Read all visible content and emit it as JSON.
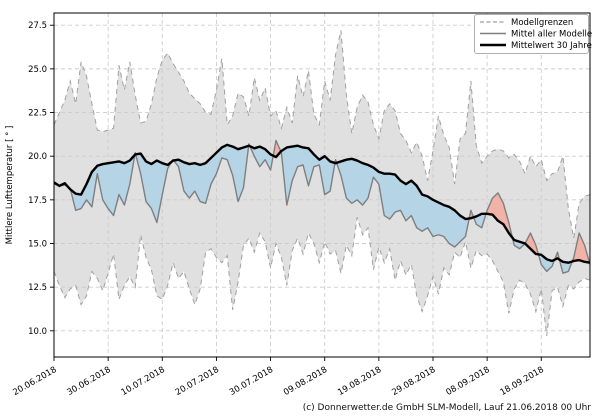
{
  "page": {
    "footer": "(c) Donnerwetter.de GmbH SLM-Modell, Lauf 21.06.2018 00 Uhr"
  },
  "chart_data": {
    "type": "line",
    "title": "",
    "xlabel": "",
    "ylabel": "Mittlere Lufttemperatur [ ° ]",
    "grid": true,
    "axes": {
      "ylim": [
        8.5,
        28.2
      ],
      "y_ticks": [
        "10.0",
        "12.5",
        "15.0",
        "17.5",
        "20.0",
        "22.5",
        "25.0",
        "27.5"
      ],
      "x_ticks": [
        {
          "day": 0,
          "label": "20.06.2018"
        },
        {
          "day": 10,
          "label": "30.06.2018"
        },
        {
          "day": 20,
          "label": "10.07.2018"
        },
        {
          "day": 30,
          "label": "20.07.2018"
        },
        {
          "day": 40,
          "label": "30.07.2018"
        },
        {
          "day": 50,
          "label": "09.08.2018"
        },
        {
          "day": 60,
          "label": "19.08.2018"
        },
        {
          "day": 70,
          "label": "29.08.2018"
        },
        {
          "day": 80,
          "label": "08.09.2018"
        },
        {
          "day": 90,
          "label": "18.09.2018"
        }
      ]
    },
    "legend": {
      "position": "upper-right",
      "entries": [
        {
          "label": "Modellgrenzen",
          "style": "dashed-gray"
        },
        {
          "label": "Mittel aller Modelle",
          "style": "solid-gray"
        },
        {
          "label": "Mittelwert 30 Jahre",
          "style": "solid-black-thick"
        }
      ]
    },
    "colors": {
      "band_fill": "#e0e0e0",
      "band_edge": "#a0a0a0",
      "model_mean": "#7f7f7f",
      "climate": "#000000",
      "above_fill": "#f1b2a8",
      "below_fill": "#b5d5e7",
      "grid": "#cccccc",
      "frame": "#000000",
      "legend_border": "#b0b0b0"
    },
    "series": [
      {
        "id": "upper",
        "name": "Modellgrenzen (obere Grenze)",
        "values": [
          21.8,
          22.5,
          23.2,
          24.3,
          23.0,
          25.4,
          24.6,
          23.0,
          21.5,
          21.4,
          21.5,
          21.6,
          25.2,
          23.8,
          25.4,
          23.5,
          21.9,
          22.0,
          23.0,
          24.5,
          25.5,
          25.9,
          25.3,
          24.8,
          24.3,
          23.6,
          23.3,
          23.0,
          22.5,
          22.4,
          23.8,
          25.6,
          21.8,
          22.3,
          23.6,
          23.4,
          22.3,
          24.5,
          23.2,
          23.9,
          22.3,
          22.6,
          21.6,
          22.8,
          21.9,
          24.6,
          23.4,
          24.9,
          22.4,
          21.8,
          24.3,
          23.2,
          25.8,
          27.2,
          23.5,
          21.3,
          22.8,
          23.5,
          23.1,
          21.8,
          21.0,
          22.6,
          23.0,
          22.6,
          21.3,
          20.9,
          20.2,
          20.8,
          20.0,
          18.6,
          20.3,
          22.3,
          21.2,
          20.5,
          18.4,
          21.0,
          21.3,
          24.3,
          20.6,
          19.6,
          20.0,
          20.3,
          20.4,
          20.3,
          19.9,
          20.1,
          19.7,
          19.0,
          20.0,
          19.4,
          19.8,
          18.6,
          19.0,
          19.1,
          20.0,
          17.0,
          15.3,
          17.3,
          17.7,
          17.8
        ]
      },
      {
        "id": "lower",
        "name": "Modellgrenzen (untere Grenze)",
        "values": [
          13.4,
          12.6,
          11.9,
          12.4,
          12.6,
          11.5,
          12.0,
          13.4,
          13.0,
          12.3,
          13.3,
          14.4,
          11.8,
          12.6,
          13.1,
          12.5,
          15.5,
          14.2,
          13.5,
          12.0,
          11.8,
          12.6,
          13.9,
          13.0,
          13.4,
          12.4,
          11.5,
          12.4,
          14.5,
          14.7,
          14.2,
          13.9,
          14.3,
          11.2,
          12.8,
          14.9,
          15.3,
          14.5,
          15.6,
          15.1,
          13.6,
          15.0,
          14.2,
          12.6,
          14.6,
          15.3,
          14.4,
          15.6,
          15.0,
          13.9,
          15.1,
          14.4,
          14.6,
          13.3,
          14.9,
          14.3,
          16.5,
          15.5,
          15.9,
          13.5,
          14.8,
          13.9,
          14.7,
          12.9,
          14.0,
          13.2,
          13.8,
          12.0,
          11.1,
          12.0,
          13.1,
          12.1,
          13.6,
          13.2,
          14.5,
          14.2,
          15.1,
          13.6,
          14.6,
          14.3,
          14.4,
          14.0,
          13.4,
          12.8,
          11.0,
          12.4,
          12.9,
          12.7,
          12.1,
          11.1,
          12.4,
          9.7,
          12.3,
          12.5,
          11.4,
          12.6,
          12.4,
          12.8,
          13.0,
          12.9
        ]
      },
      {
        "id": "model_mean",
        "name": "Mittel aller Modelle",
        "values": [
          18.4,
          18.3,
          18.35,
          18.15,
          16.9,
          17.0,
          17.5,
          17.1,
          19.0,
          17.5,
          17.0,
          16.6,
          17.8,
          17.2,
          18.4,
          20.2,
          19.0,
          17.4,
          17.0,
          16.2,
          17.8,
          19.3,
          19.8,
          19.4,
          18.0,
          17.6,
          18.0,
          17.4,
          17.3,
          18.4,
          19.0,
          19.9,
          19.8,
          18.9,
          17.4,
          18.2,
          20.7,
          20.0,
          19.4,
          19.8,
          19.2,
          20.9,
          20.2,
          17.2,
          18.6,
          19.4,
          19.5,
          18.3,
          19.4,
          19.5,
          17.8,
          18.0,
          19.8,
          18.9,
          17.6,
          17.3,
          17.5,
          17.2,
          17.6,
          18.8,
          18.4,
          16.6,
          16.4,
          16.8,
          16.9,
          16.3,
          16.6,
          15.9,
          15.7,
          15.9,
          15.4,
          15.5,
          15.4,
          15.0,
          14.8,
          15.1,
          15.4,
          16.9,
          16.1,
          15.9,
          16.9,
          17.6,
          17.9,
          17.3,
          16.2,
          14.9,
          14.7,
          15.0,
          15.6,
          14.9,
          13.8,
          13.4,
          13.7,
          14.5,
          13.3,
          13.4,
          14.2,
          15.6,
          14.9,
          13.8
        ]
      },
      {
        "id": "climate",
        "name": "Mittelwert 30 Jahre",
        "values": [
          18.5,
          18.3,
          18.45,
          18.1,
          17.85,
          17.8,
          18.4,
          19.1,
          19.45,
          19.55,
          19.6,
          19.65,
          19.7,
          19.6,
          19.75,
          20.1,
          20.15,
          19.7,
          19.55,
          19.75,
          19.6,
          19.5,
          19.75,
          19.8,
          19.65,
          19.55,
          19.6,
          19.5,
          19.6,
          19.9,
          20.2,
          20.5,
          20.65,
          20.55,
          20.4,
          20.5,
          20.6,
          20.45,
          20.55,
          20.4,
          20.1,
          19.95,
          20.3,
          20.5,
          20.55,
          20.6,
          20.5,
          20.45,
          20.1,
          19.8,
          20.0,
          19.7,
          19.6,
          19.7,
          19.8,
          19.85,
          19.75,
          19.6,
          19.5,
          19.35,
          19.1,
          19.0,
          19.0,
          18.95,
          18.6,
          18.4,
          18.6,
          18.3,
          17.8,
          17.7,
          17.5,
          17.35,
          17.2,
          17.1,
          16.9,
          16.6,
          16.4,
          16.45,
          16.55,
          16.7,
          16.7,
          16.65,
          16.3,
          16.1,
          15.6,
          15.2,
          15.1,
          15.0,
          14.7,
          14.4,
          14.35,
          14.1,
          14.0,
          14.15,
          13.95,
          13.9,
          14.0,
          14.05,
          13.95,
          13.9
        ]
      }
    ]
  }
}
